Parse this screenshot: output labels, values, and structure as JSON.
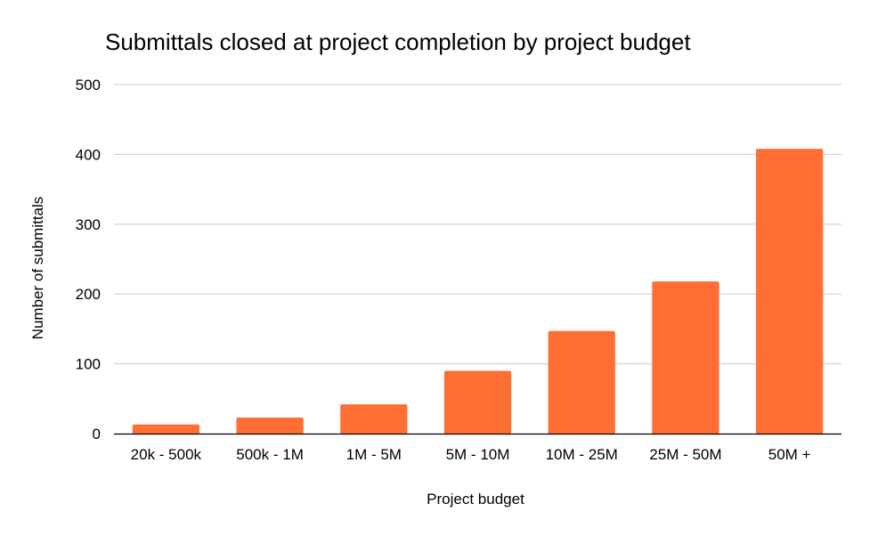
{
  "chart_data": {
    "type": "bar",
    "title": "Submittals closed at project completion by project budget",
    "xlabel": "Project budget",
    "ylabel": "Number of submittals",
    "categories": [
      "20k - 500k",
      "500k - 1M",
      "1M - 5M",
      "5M - 10M",
      "10M - 25M",
      "25M - 50M",
      "50M +"
    ],
    "series": [
      {
        "name": "Number of submittals",
        "values": [
          13,
          23,
          42,
          90,
          147,
          218,
          408
        ]
      }
    ],
    "ylim": [
      0,
      500
    ],
    "yticks": [
      "0",
      "100",
      "200",
      "300",
      "400",
      "500"
    ],
    "grid": true,
    "legend": "none",
    "colors": {
      "bar": "#ff6f33",
      "grid": "#cccccc",
      "axis": "#000000"
    }
  }
}
